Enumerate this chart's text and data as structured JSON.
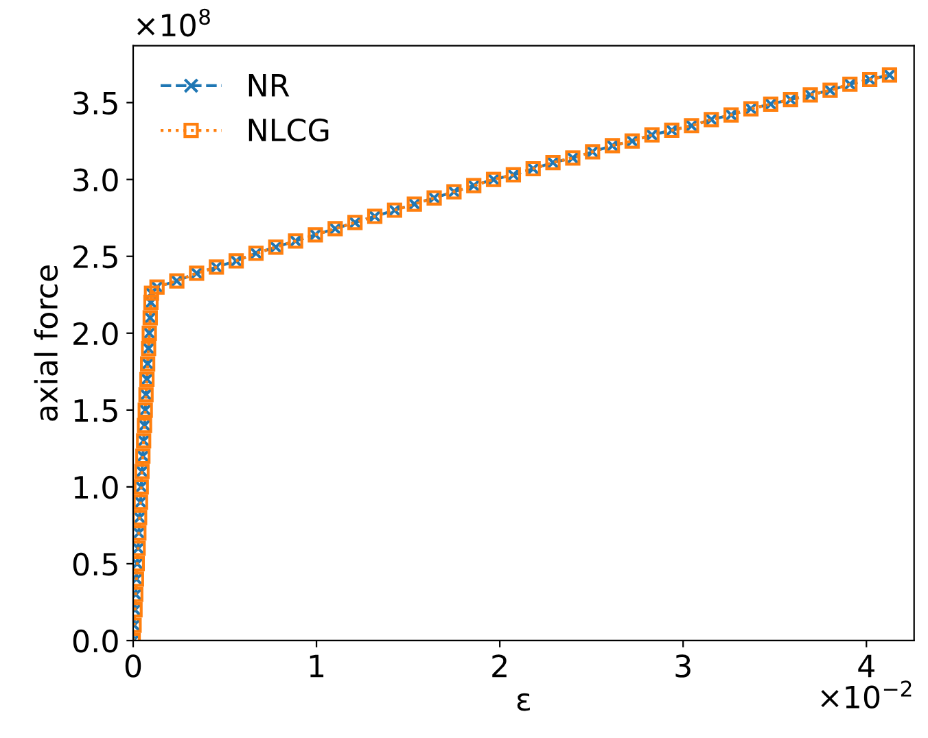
{
  "chart_data": {
    "type": "line",
    "xlabel": "ε",
    "ylabel": "axial force",
    "annotations": [
      "×10$^{8}$",
      "×10$^{−2}$"
    ],
    "x": [
      0,
      0.005,
      0.01,
      0.014,
      0.018,
      0.022,
      0.027,
      0.031,
      0.035,
      0.04,
      0.044,
      0.048,
      0.053,
      0.057,
      0.062,
      0.066,
      0.07,
      0.075,
      0.079,
      0.084,
      0.088,
      0.093,
      0.097,
      0.1,
      0.13,
      0.238,
      0.346,
      0.454,
      0.562,
      0.67,
      0.778,
      0.886,
      0.994,
      1.102,
      1.21,
      1.318,
      1.426,
      1.534,
      1.642,
      1.75,
      1.858,
      1.966,
      2.074,
      2.182,
      2.29,
      2.398,
      2.506,
      2.614,
      2.722,
      2.83,
      2.938,
      3.046,
      3.154,
      3.262,
      3.37,
      3.478,
      3.586,
      3.694,
      3.802,
      3.91,
      4.018,
      4.126
    ],
    "series": [
      {
        "name": "NR",
        "color": "#1f77b4",
        "marker": "cross",
        "line_style": "dashed",
        "values": [
          0,
          0.1,
          0.2,
          0.3,
          0.4,
          0.5,
          0.6,
          0.7,
          0.8,
          0.9,
          1.0,
          1.1,
          1.2,
          1.3,
          1.4,
          1.5,
          1.6,
          1.7,
          1.8,
          1.9,
          2.0,
          2.1,
          2.2,
          2.26,
          2.3,
          2.34,
          2.39,
          2.43,
          2.47,
          2.52,
          2.56,
          2.6,
          2.64,
          2.68,
          2.72,
          2.76,
          2.8,
          2.84,
          2.88,
          2.92,
          2.96,
          3.0,
          3.03,
          3.07,
          3.11,
          3.14,
          3.18,
          3.22,
          3.25,
          3.29,
          3.32,
          3.35,
          3.39,
          3.42,
          3.46,
          3.49,
          3.52,
          3.55,
          3.58,
          3.62,
          3.65,
          3.68
        ]
      },
      {
        "name": "NLCG",
        "color": "#ff7f0e",
        "marker": "square",
        "line_style": "dotted",
        "values": [
          0,
          0.1,
          0.2,
          0.3,
          0.4,
          0.5,
          0.6,
          0.7,
          0.8,
          0.9,
          1.0,
          1.1,
          1.2,
          1.3,
          1.4,
          1.5,
          1.6,
          1.7,
          1.8,
          1.9,
          2.0,
          2.1,
          2.2,
          2.26,
          2.3,
          2.34,
          2.39,
          2.43,
          2.47,
          2.52,
          2.56,
          2.6,
          2.64,
          2.68,
          2.72,
          2.76,
          2.8,
          2.84,
          2.88,
          2.92,
          2.96,
          3.0,
          3.03,
          3.07,
          3.11,
          3.14,
          3.18,
          3.22,
          3.25,
          3.29,
          3.32,
          3.35,
          3.39,
          3.42,
          3.46,
          3.49,
          3.52,
          3.55,
          3.58,
          3.62,
          3.65,
          3.68
        ]
      }
    ],
    "xlim": [
      0,
      4.26
    ],
    "ylim": [
      0,
      3.87
    ],
    "xticks": [
      0,
      1,
      2,
      3,
      4
    ],
    "yticks": [
      {
        "value": 0,
        "label": "0.0"
      },
      0.5,
      {
        "value": 1,
        "label": "1.0"
      },
      1.5,
      {
        "value": 2,
        "label": "2.0"
      },
      2.5,
      {
        "value": 3,
        "label": "3.0"
      },
      3.5
    ],
    "grid": false,
    "legend": "top left"
  }
}
